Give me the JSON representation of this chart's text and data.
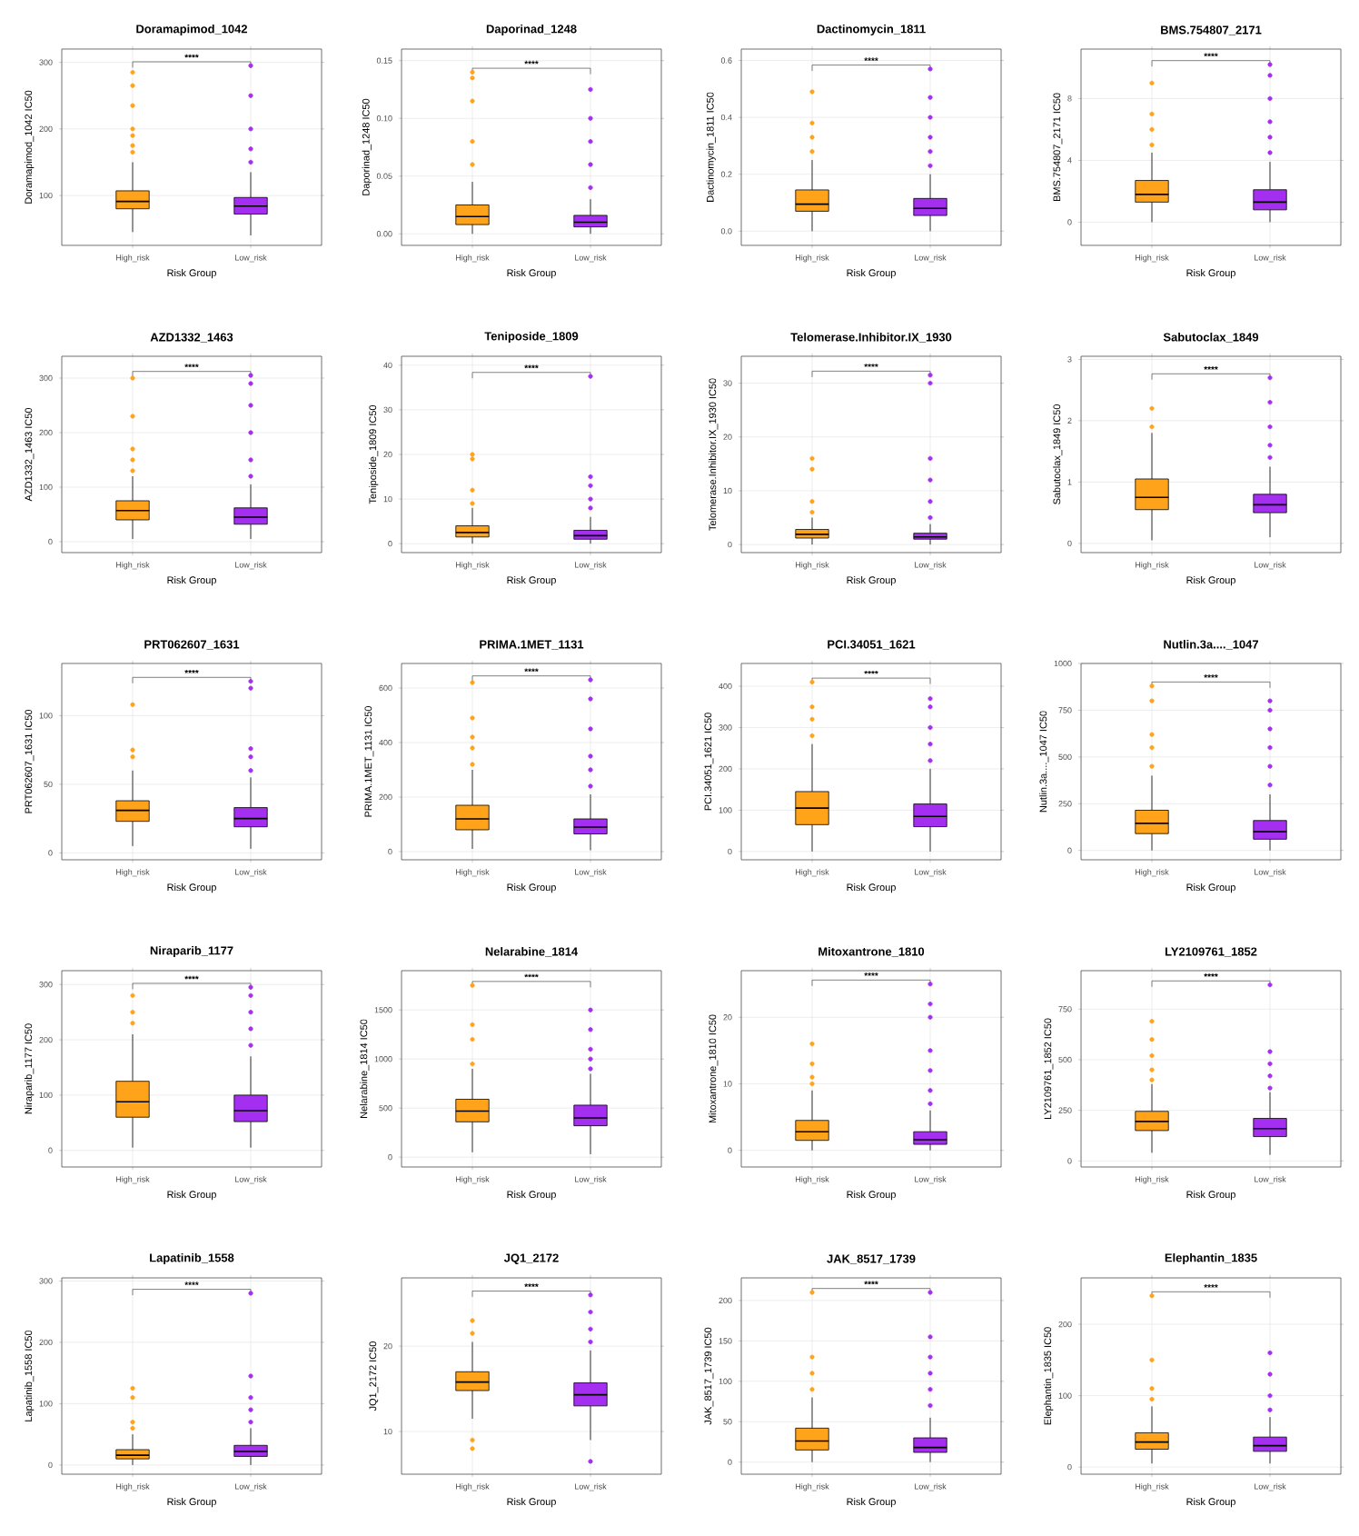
{
  "chart_data": [
    {
      "type": "box",
      "title": "Doramapimod_1042",
      "xlabel": "Risk Group",
      "ylabel": "Doramapimod_1042 IC50",
      "categories": [
        "High_risk",
        "Low_risk"
      ],
      "colors": [
        "#ffa31a",
        "#a52ff0"
      ],
      "ylim": [
        25,
        320
      ],
      "yticks": [
        100,
        200,
        300
      ],
      "grid": true,
      "annotations": [
        "****"
      ],
      "boxes": [
        {
          "low": 45,
          "q1": 80,
          "median": 91,
          "q3": 107,
          "high": 150,
          "outliers": [
            165,
            175,
            190,
            200,
            235,
            265,
            285
          ]
        },
        {
          "low": 40,
          "q1": 72,
          "median": 84,
          "q3": 97,
          "high": 135,
          "outliers": [
            150,
            170,
            200,
            250,
            295
          ]
        }
      ]
    },
    {
      "type": "box",
      "title": "Daporinad_1248",
      "xlabel": "Risk Group",
      "ylabel": "Daporinad_1248 IC50",
      "categories": [
        "High_risk",
        "Low_risk"
      ],
      "colors": [
        "#ffa31a",
        "#a52ff0"
      ],
      "ylim": [
        -0.01,
        0.16
      ],
      "yticks": [
        {
          "value": 0,
          "label": "0.00"
        },
        {
          "value": 0.05,
          "label": "0.05"
        },
        {
          "value": 0.1,
          "label": "0.10"
        },
        {
          "value": 0.15,
          "label": "0.15"
        }
      ],
      "grid": true,
      "annotations": [
        "****"
      ],
      "boxes": [
        {
          "low": 0,
          "q1": 0.008,
          "median": 0.015,
          "q3": 0.025,
          "high": 0.045,
          "outliers": [
            0.06,
            0.08,
            0.115,
            0.135,
            0.14
          ]
        },
        {
          "low": 0,
          "q1": 0.006,
          "median": 0.01,
          "q3": 0.016,
          "high": 0.03,
          "outliers": [
            0.04,
            0.06,
            0.08,
            0.1,
            0.125
          ]
        }
      ]
    },
    {
      "type": "box",
      "title": "Dactinomycin_1811",
      "xlabel": "Risk Group",
      "ylabel": "Dactinomycin_1811 IC50",
      "categories": [
        "High_risk",
        "Low_risk"
      ],
      "colors": [
        "#ffa31a",
        "#a52ff0"
      ],
      "ylim": [
        -0.05,
        0.64
      ],
      "yticks": [
        {
          "value": 0,
          "label": "0.0"
        },
        {
          "value": 0.2,
          "label": "0.2"
        },
        {
          "value": 0.4,
          "label": "0.4"
        },
        {
          "value": 0.6,
          "label": "0.6"
        }
      ],
      "grid": true,
      "annotations": [
        "****"
      ],
      "boxes": [
        {
          "low": 0,
          "q1": 0.07,
          "median": 0.095,
          "q3": 0.145,
          "high": 0.25,
          "outliers": [
            0.28,
            0.33,
            0.38,
            0.49
          ]
        },
        {
          "low": 0,
          "q1": 0.055,
          "median": 0.08,
          "q3": 0.115,
          "high": 0.2,
          "outliers": [
            0.23,
            0.28,
            0.33,
            0.4,
            0.47,
            0.57
          ]
        }
      ]
    },
    {
      "type": "box",
      "title": "BMS.754807_2171",
      "xlabel": "Risk Group",
      "ylabel": "BMS.754807_2171 IC50",
      "categories": [
        "High_risk",
        "Low_risk"
      ],
      "colors": [
        "#ffa31a",
        "#a52ff0"
      ],
      "ylim": [
        -1.5,
        11.2
      ],
      "yticks": [
        0,
        4,
        8
      ],
      "grid": true,
      "annotations": [
        "****"
      ],
      "boxes": [
        {
          "low": 0,
          "q1": 1.3,
          "median": 1.8,
          "q3": 2.7,
          "high": 4.5,
          "outliers": [
            5,
            6,
            7,
            9
          ]
        },
        {
          "low": 0,
          "q1": 0.8,
          "median": 1.3,
          "q3": 2.1,
          "high": 3.9,
          "outliers": [
            4.5,
            5.5,
            6.5,
            8,
            9.5,
            10.2
          ]
        }
      ]
    },
    {
      "type": "box",
      "title": "AZD1332_1463",
      "xlabel": "Risk Group",
      "ylabel": "AZD1332_1463 IC50",
      "categories": [
        "High_risk",
        "Low_risk"
      ],
      "colors": [
        "#ffa31a",
        "#a52ff0"
      ],
      "ylim": [
        -20,
        340
      ],
      "yticks": [
        0,
        100,
        200,
        300
      ],
      "grid": true,
      "annotations": [
        "****"
      ],
      "boxes": [
        {
          "low": 5,
          "q1": 40,
          "median": 57,
          "q3": 75,
          "high": 120,
          "outliers": [
            130,
            150,
            170,
            230,
            300
          ]
        },
        {
          "low": 5,
          "q1": 32,
          "median": 45,
          "q3": 62,
          "high": 105,
          "outliers": [
            120,
            150,
            200,
            250,
            290,
            305
          ]
        }
      ]
    },
    {
      "type": "box",
      "title": "Teniposide_1809",
      "xlabel": "Risk Group",
      "ylabel": "Teniposide_1809 IC50",
      "categories": [
        "High_risk",
        "Low_risk"
      ],
      "colors": [
        "#ffa31a",
        "#a52ff0"
      ],
      "ylim": [
        -2,
        42
      ],
      "yticks": [
        0,
        10,
        20,
        30,
        40
      ],
      "grid": true,
      "annotations": [
        "****"
      ],
      "boxes": [
        {
          "low": 0,
          "q1": 1.5,
          "median": 2.5,
          "q3": 4,
          "high": 8,
          "outliers": [
            9,
            12,
            19,
            20
          ]
        },
        {
          "low": 0,
          "q1": 1,
          "median": 1.8,
          "q3": 3,
          "high": 6,
          "outliers": [
            8,
            10,
            13,
            15,
            37.5
          ]
        }
      ]
    },
    {
      "type": "box",
      "title": "Telomerase.Inhibitor.IX_1930",
      "xlabel": "Risk Group",
      "ylabel": "Telomerase.Inhibitor.IX_1930 IC50",
      "categories": [
        "High_risk",
        "Low_risk"
      ],
      "colors": [
        "#ffa31a",
        "#a52ff0"
      ],
      "ylim": [
        -1.5,
        35
      ],
      "yticks": [
        0,
        10,
        20,
        30
      ],
      "grid": true,
      "annotations": [
        "****"
      ],
      "boxes": [
        {
          "low": 0,
          "q1": 1.2,
          "median": 1.9,
          "q3": 2.8,
          "high": 5,
          "outliers": [
            6,
            8,
            14,
            16
          ]
        },
        {
          "low": 0,
          "q1": 1,
          "median": 1.4,
          "q3": 2.1,
          "high": 3.8,
          "outliers": [
            5,
            8,
            12,
            16,
            30,
            31.5
          ]
        }
      ]
    },
    {
      "type": "box",
      "title": "Sabutoclax_1849",
      "xlabel": "Risk Group",
      "ylabel": "Sabutoclax_1849 IC50",
      "categories": [
        "High_risk",
        "Low_risk"
      ],
      "colors": [
        "#ffa31a",
        "#a52ff0"
      ],
      "ylim": [
        -0.15,
        3.05
      ],
      "yticks": [
        0,
        1,
        2,
        3
      ],
      "grid": true,
      "annotations": [
        "****"
      ],
      "boxes": [
        {
          "low": 0.05,
          "q1": 0.55,
          "median": 0.75,
          "q3": 1.05,
          "high": 1.8,
          "outliers": [
            1.9,
            2.2
          ]
        },
        {
          "low": 0.1,
          "q1": 0.5,
          "median": 0.63,
          "q3": 0.8,
          "high": 1.25,
          "outliers": [
            1.4,
            1.6,
            1.9,
            2.3,
            2.7
          ]
        }
      ]
    },
    {
      "type": "box",
      "title": "PRT062607_1631",
      "xlabel": "Risk Group",
      "ylabel": "PRT062607_1631 IC50",
      "categories": [
        "High_risk",
        "Low_risk"
      ],
      "colors": [
        "#ffa31a",
        "#a52ff0"
      ],
      "ylim": [
        -5,
        138
      ],
      "yticks": [
        0,
        50,
        100
      ],
      "grid": true,
      "annotations": [
        "****"
      ],
      "boxes": [
        {
          "low": 5,
          "q1": 23,
          "median": 31,
          "q3": 38,
          "high": 60,
          "outliers": [
            70,
            75,
            108
          ]
        },
        {
          "low": 3,
          "q1": 19,
          "median": 25,
          "q3": 33,
          "high": 55,
          "outliers": [
            60,
            70,
            76,
            120,
            125
          ]
        }
      ]
    },
    {
      "type": "box",
      "title": "PRIMA.1MET_1131",
      "xlabel": "Risk Group",
      "ylabel": "PRIMA.1MET_1131 IC50",
      "categories": [
        "High_risk",
        "Low_risk"
      ],
      "colors": [
        "#ffa31a",
        "#a52ff0"
      ],
      "ylim": [
        -30,
        690
      ],
      "yticks": [
        0,
        200,
        400,
        600
      ],
      "grid": true,
      "annotations": [
        "****"
      ],
      "boxes": [
        {
          "low": 10,
          "q1": 80,
          "median": 120,
          "q3": 170,
          "high": 300,
          "outliers": [
            320,
            380,
            420,
            490,
            620
          ]
        },
        {
          "low": 5,
          "q1": 65,
          "median": 90,
          "q3": 120,
          "high": 210,
          "outliers": [
            240,
            300,
            350,
            450,
            560,
            630
          ]
        }
      ]
    },
    {
      "type": "box",
      "title": "PCI.34051_1621",
      "xlabel": "Risk Group",
      "ylabel": "PCI.34051_1621 IC50",
      "categories": [
        "High_risk",
        "Low_risk"
      ],
      "colors": [
        "#ffa31a",
        "#a52ff0"
      ],
      "ylim": [
        -20,
        455
      ],
      "yticks": [
        0,
        100,
        200,
        300,
        400
      ],
      "grid": true,
      "annotations": [
        "****"
      ],
      "boxes": [
        {
          "low": 0,
          "q1": 65,
          "median": 105,
          "q3": 145,
          "high": 260,
          "outliers": [
            280,
            320,
            350,
            410
          ]
        },
        {
          "low": 0,
          "q1": 60,
          "median": 85,
          "q3": 115,
          "high": 200,
          "outliers": [
            220,
            260,
            300,
            350,
            370
          ]
        }
      ]
    },
    {
      "type": "box",
      "title": "Nutlin.3a...._1047",
      "xlabel": "Risk Group",
      "ylabel": "Nutlin.3a...._1047 IC50",
      "categories": [
        "High_risk",
        "Low_risk"
      ],
      "colors": [
        "#ffa31a",
        "#a52ff0"
      ],
      "ylim": [
        -50,
        1000
      ],
      "yticks": [
        0,
        250,
        500,
        750,
        1000
      ],
      "grid": true,
      "annotations": [
        "****"
      ],
      "boxes": [
        {
          "low": 0,
          "q1": 90,
          "median": 145,
          "q3": 215,
          "high": 400,
          "outliers": [
            450,
            550,
            620,
            800,
            880
          ]
        },
        {
          "low": 0,
          "q1": 60,
          "median": 100,
          "q3": 160,
          "high": 300,
          "outliers": [
            350,
            450,
            550,
            650,
            750,
            800
          ]
        }
      ]
    },
    {
      "type": "box",
      "title": "Niraparib_1177",
      "xlabel": "Risk Group",
      "ylabel": "Niraparib_1177 IC50",
      "categories": [
        "High_risk",
        "Low_risk"
      ],
      "colors": [
        "#ffa31a",
        "#a52ff0"
      ],
      "ylim": [
        -30,
        325
      ],
      "yticks": [
        0,
        100,
        200,
        300
      ],
      "grid": true,
      "annotations": [
        "****"
      ],
      "boxes": [
        {
          "low": 5,
          "q1": 60,
          "median": 88,
          "q3": 125,
          "high": 210,
          "outliers": [
            230,
            250,
            280
          ]
        },
        {
          "low": 5,
          "q1": 52,
          "median": 72,
          "q3": 100,
          "high": 170,
          "outliers": [
            190,
            220,
            250,
            280,
            295
          ]
        }
      ]
    },
    {
      "type": "box",
      "title": "Nelarabine_1814",
      "xlabel": "Risk Group",
      "ylabel": "Nelarabine_1814 IC50",
      "categories": [
        "High_risk",
        "Low_risk"
      ],
      "colors": [
        "#ffa31a",
        "#a52ff0"
      ],
      "ylim": [
        -100,
        1900
      ],
      "yticks": [
        0,
        500,
        1000,
        1500
      ],
      "grid": true,
      "annotations": [
        "****"
      ],
      "boxes": [
        {
          "low": 50,
          "q1": 360,
          "median": 470,
          "q3": 590,
          "high": 900,
          "outliers": [
            950,
            1200,
            1350,
            1750
          ]
        },
        {
          "low": 30,
          "q1": 320,
          "median": 400,
          "q3": 530,
          "high": 850,
          "outliers": [
            900,
            1000,
            1100,
            1300,
            1500
          ]
        }
      ]
    },
    {
      "type": "box",
      "title": "Mitoxantrone_1810",
      "xlabel": "Risk Group",
      "ylabel": "Mitoxantrone_1810 IC50",
      "categories": [
        "High_risk",
        "Low_risk"
      ],
      "colors": [
        "#ffa31a",
        "#a52ff0"
      ],
      "ylim": [
        -2.5,
        27
      ],
      "yticks": [
        0,
        10,
        20
      ],
      "grid": true,
      "annotations": [
        "****"
      ],
      "boxes": [
        {
          "low": 0,
          "q1": 1.5,
          "median": 2.8,
          "q3": 4.5,
          "high": 9,
          "outliers": [
            10,
            11,
            13,
            16
          ]
        },
        {
          "low": 0,
          "q1": 0.9,
          "median": 1.6,
          "q3": 2.8,
          "high": 6,
          "outliers": [
            7,
            9,
            12,
            15,
            20,
            22,
            25
          ]
        }
      ]
    },
    {
      "type": "box",
      "title": "LY2109761_1852",
      "xlabel": "Risk Group",
      "ylabel": "LY2109761_1852 IC50",
      "categories": [
        "High_risk",
        "Low_risk"
      ],
      "colors": [
        "#ffa31a",
        "#a52ff0"
      ],
      "ylim": [
        -30,
        940
      ],
      "yticks": [
        0,
        250,
        500,
        750
      ],
      "grid": true,
      "annotations": [
        "****"
      ],
      "boxes": [
        {
          "low": 40,
          "q1": 150,
          "median": 195,
          "q3": 245,
          "high": 380,
          "outliers": [
            400,
            450,
            520,
            600,
            690
          ]
        },
        {
          "low": 30,
          "q1": 120,
          "median": 160,
          "q3": 210,
          "high": 340,
          "outliers": [
            360,
            420,
            480,
            540,
            870
          ]
        }
      ]
    },
    {
      "type": "box",
      "title": "Lapatinib_1558",
      "xlabel": "Risk Group",
      "ylabel": "Lapatinib_1558 IC50",
      "categories": [
        "High_risk",
        "Low_risk"
      ],
      "colors": [
        "#ffa31a",
        "#a52ff0"
      ],
      "ylim": [
        -15,
        305
      ],
      "yticks": [
        0,
        100,
        200,
        300
      ],
      "grid": true,
      "annotations": [
        "****"
      ],
      "boxes": [
        {
          "low": 0,
          "q1": 10,
          "median": 16,
          "q3": 25,
          "high": 50,
          "outliers": [
            60,
            70,
            110,
            125
          ]
        },
        {
          "low": 0,
          "q1": 14,
          "median": 22,
          "q3": 32,
          "high": 60,
          "outliers": [
            70,
            90,
            110,
            145,
            280
          ]
        }
      ]
    },
    {
      "type": "box",
      "title": "JQ1_2172",
      "xlabel": "Risk Group",
      "ylabel": "JQ1_2172 IC50",
      "categories": [
        "High_risk",
        "Low_risk"
      ],
      "colors": [
        "#ffa31a",
        "#a52ff0"
      ],
      "ylim": [
        5,
        28
      ],
      "yticks": [
        10,
        20
      ],
      "grid": true,
      "annotations": [
        "****"
      ],
      "boxes": [
        {
          "low": 11.5,
          "q1": 14.8,
          "median": 15.8,
          "q3": 17,
          "high": 20.5,
          "outliers": [
            8,
            9,
            21.5,
            23
          ]
        },
        {
          "low": 9,
          "q1": 13,
          "median": 14.3,
          "q3": 15.7,
          "high": 19.5,
          "outliers": [
            6.5,
            20.5,
            22,
            24,
            26
          ]
        }
      ]
    },
    {
      "type": "box",
      "title": "JAK_8517_1739",
      "xlabel": "Risk Group",
      "ylabel": "JAK_8517_1739 IC50",
      "categories": [
        "High_risk",
        "Low_risk"
      ],
      "colors": [
        "#ffa31a",
        "#a52ff0"
      ],
      "ylim": [
        -15,
        228
      ],
      "yticks": [
        0,
        50,
        100,
        150,
        200
      ],
      "grid": true,
      "annotations": [
        "****"
      ],
      "boxes": [
        {
          "low": 0,
          "q1": 15,
          "median": 26,
          "q3": 42,
          "high": 80,
          "outliers": [
            90,
            110,
            130,
            210
          ]
        },
        {
          "low": 0,
          "q1": 12,
          "median": 18,
          "q3": 30,
          "high": 55,
          "outliers": [
            70,
            90,
            110,
            130,
            155,
            210
          ]
        }
      ]
    },
    {
      "type": "box",
      "title": "Elephantin_1835",
      "xlabel": "Risk Group",
      "ylabel": "Elephantin_1835 IC50",
      "categories": [
        "High_risk",
        "Low_risk"
      ],
      "colors": [
        "#ffa31a",
        "#a52ff0"
      ],
      "ylim": [
        -10,
        265
      ],
      "yticks": [
        0,
        100,
        200
      ],
      "grid": true,
      "annotations": [
        "****"
      ],
      "boxes": [
        {
          "low": 5,
          "q1": 25,
          "median": 35,
          "q3": 48,
          "high": 85,
          "outliers": [
            95,
            110,
            150,
            240
          ]
        },
        {
          "low": 5,
          "q1": 22,
          "median": 30,
          "q3": 42,
          "high": 70,
          "outliers": [
            80,
            100,
            130,
            160
          ]
        }
      ]
    }
  ]
}
